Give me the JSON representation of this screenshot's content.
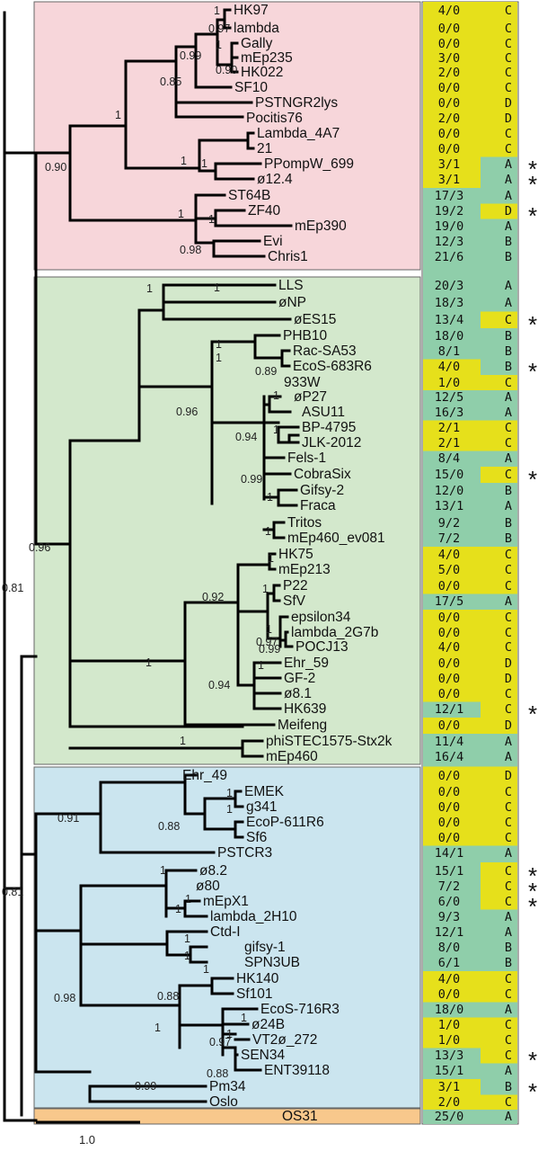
{
  "colors": {
    "pink": "#f7d6da",
    "green": "#d3e8cc",
    "blue": "#cbe5ef",
    "orange": "#f8c88c",
    "yellow": "#e6e01b",
    "teal": "#8fceaa"
  },
  "clades": [
    {
      "name": "pink-clade",
      "color": "#f7d6da"
    },
    {
      "name": "green-clade",
      "color": "#d3e8cc"
    },
    {
      "name": "blue-clade",
      "color": "#cbe5ef"
    },
    {
      "name": "outgroup",
      "color": "#f8c88c"
    }
  ],
  "taxa": [
    {
      "name": "HK97",
      "count": "4/0",
      "cls": "C",
      "star": false
    },
    {
      "name": "lambda",
      "count": "0/0",
      "cls": "C",
      "star": false
    },
    {
      "name": "Gally",
      "count": "0/0",
      "cls": "C",
      "star": false
    },
    {
      "name": "mEp235",
      "count": "3/0",
      "cls": "C",
      "star": false
    },
    {
      "name": "HK022",
      "count": "2/0",
      "cls": "C",
      "star": false
    },
    {
      "name": "SF10",
      "count": "0/0",
      "cls": "C",
      "star": false
    },
    {
      "name": "PSTNGR2lys",
      "count": "0/0",
      "cls": "D",
      "star": false
    },
    {
      "name": "Pocitis76",
      "count": "2/0",
      "cls": "D",
      "star": false
    },
    {
      "name": "Lambda_4A7",
      "count": "0/0",
      "cls": "C",
      "star": false
    },
    {
      "name": "21",
      "count": "0/0",
      "cls": "C",
      "star": false
    },
    {
      "name": "PPompW_699",
      "count": "3/1",
      "cls": "A",
      "star": true
    },
    {
      "name": "ø12.4",
      "count": "3/1",
      "cls": "A",
      "star": true
    },
    {
      "name": "ST64B",
      "count": "17/3",
      "cls": "A",
      "star": false
    },
    {
      "name": "ZF40",
      "count": "19/2",
      "cls": "D",
      "star": true
    },
    {
      "name": "mEp390",
      "count": "19/0",
      "cls": "A",
      "star": false
    },
    {
      "name": "Evi",
      "count": "12/3",
      "cls": "B",
      "star": false
    },
    {
      "name": "Chris1",
      "count": "21/6",
      "cls": "B",
      "star": false
    },
    {
      "name": "LLS",
      "count": "20/3",
      "cls": "A",
      "star": false
    },
    {
      "name": "øNP",
      "count": "18/3",
      "cls": "A",
      "star": false
    },
    {
      "name": "øES15",
      "count": "13/4",
      "cls": "C",
      "star": true
    },
    {
      "name": "PHB10",
      "count": "18/0",
      "cls": "B",
      "star": false
    },
    {
      "name": "Rac-SA53",
      "count": "8/1",
      "cls": "B",
      "star": false
    },
    {
      "name": "EcoS-683R6",
      "count": "4/0",
      "cls": "B",
      "star": true
    },
    {
      "name": "933W",
      "count": "1/0",
      "cls": "C",
      "star": false
    },
    {
      "name": "øP27",
      "count": "12/5",
      "cls": "A",
      "star": false
    },
    {
      "name": "ASU11",
      "count": "16/3",
      "cls": "A",
      "star": false
    },
    {
      "name": "BP-4795",
      "count": "2/1",
      "cls": "C",
      "star": false
    },
    {
      "name": "JLK-2012",
      "count": "2/1",
      "cls": "C",
      "star": false
    },
    {
      "name": "Fels-1",
      "count": "8/4",
      "cls": "A",
      "star": false
    },
    {
      "name": "CobraSix",
      "count": "15/0",
      "cls": "C",
      "star": true
    },
    {
      "name": "Gifsy-2",
      "count": "12/0",
      "cls": "B",
      "star": false
    },
    {
      "name": "Fraca",
      "count": "13/1",
      "cls": "A",
      "star": false
    },
    {
      "name": "Tritos",
      "count": "9/2",
      "cls": "B",
      "star": false
    },
    {
      "name": "mEp460_ev081",
      "count": "7/2",
      "cls": "B",
      "star": false
    },
    {
      "name": "HK75",
      "count": "4/0",
      "cls": "C",
      "star": false
    },
    {
      "name": "mEp213",
      "count": "5/0",
      "cls": "C",
      "star": false
    },
    {
      "name": "P22",
      "count": "0/0",
      "cls": "C",
      "star": false
    },
    {
      "name": "SfV",
      "count": "17/5",
      "cls": "A",
      "star": false
    },
    {
      "name": "epsilon34",
      "count": "0/0",
      "cls": "C",
      "star": false
    },
    {
      "name": "lambda_2G7b",
      "count": "0/0",
      "cls": "C",
      "star": false
    },
    {
      "name": "POCJ13",
      "count": "4/0",
      "cls": "C",
      "star": false
    },
    {
      "name": "Ehr_59",
      "count": "0/0",
      "cls": "D",
      "star": false
    },
    {
      "name": "GF-2",
      "count": "0/0",
      "cls": "D",
      "star": false
    },
    {
      "name": "ø8.1",
      "count": "0/0",
      "cls": "C",
      "star": false
    },
    {
      "name": "HK639",
      "count": "12/1",
      "cls": "C",
      "star": true
    },
    {
      "name": "Meifeng",
      "count": "0/0",
      "cls": "D",
      "star": false
    },
    {
      "name": "phiSTEC1575-Stx2k",
      "count": "11/4",
      "cls": "A",
      "star": false
    },
    {
      "name": "mEp460",
      "count": "16/4",
      "cls": "A",
      "star": false
    },
    {
      "name": "Ehr_49",
      "count": "0/0",
      "cls": "D",
      "star": false
    },
    {
      "name": "EMEK",
      "count": "0/0",
      "cls": "C",
      "star": false
    },
    {
      "name": "g341",
      "count": "0/0",
      "cls": "C",
      "star": false
    },
    {
      "name": "EcoP-611R6",
      "count": "0/0",
      "cls": "C",
      "star": false
    },
    {
      "name": "Sf6",
      "count": "0/0",
      "cls": "C",
      "star": false
    },
    {
      "name": "PSTCR3",
      "count": "14/1",
      "cls": "A",
      "star": false
    },
    {
      "name": "ø8.2",
      "count": "15/1",
      "cls": "C",
      "star": true
    },
    {
      "name": "ø80",
      "count": "7/2",
      "cls": "C",
      "star": true
    },
    {
      "name": "mEpX1",
      "count": "6/0",
      "cls": "C",
      "star": true
    },
    {
      "name": "lambda_2H10",
      "count": "9/3",
      "cls": "A",
      "star": false
    },
    {
      "name": "Ctd-I",
      "count": "12/1",
      "cls": "A",
      "star": false
    },
    {
      "name": "gifsy-1",
      "count": "8/0",
      "cls": "B",
      "star": false
    },
    {
      "name": "SPN3UB",
      "count": "6/1",
      "cls": "B",
      "star": false
    },
    {
      "name": "HK140",
      "count": "4/0",
      "cls": "C",
      "star": false
    },
    {
      "name": "Sf101",
      "count": "0/0",
      "cls": "C",
      "star": false
    },
    {
      "name": "EcoS-716R3",
      "count": "18/0",
      "cls": "A",
      "star": false
    },
    {
      "name": "ø24B",
      "count": "1/0",
      "cls": "C",
      "star": false
    },
    {
      "name": "VT2ø_272",
      "count": "1/0",
      "cls": "C",
      "star": false
    },
    {
      "name": "SEN34",
      "count": "13/3",
      "cls": "C",
      "star": true
    },
    {
      "name": "ENT39118",
      "count": "15/1",
      "cls": "A",
      "star": false
    },
    {
      "name": "Pm34",
      "count": "3/1",
      "cls": "B",
      "star": true
    },
    {
      "name": "Oslo",
      "count": "2/0",
      "cls": "C",
      "star": false
    },
    {
      "name": "OS31",
      "count": "25/0",
      "cls": "A",
      "star": false
    }
  ],
  "support_values": [
    {
      "node": "n-hk97-lambda",
      "label": "0.97"
    },
    {
      "node": "n-gally-mep235",
      "label": "1"
    },
    {
      "node": "n-lambda-group",
      "label": "0.99"
    },
    {
      "node": "n-hk97-top",
      "label": "1"
    },
    {
      "node": "n-mep235-hk022",
      "label": "0.90"
    },
    {
      "node": "n-lambda-sf10",
      "label": "0.85"
    },
    {
      "node": "n-pink-a",
      "label": "1"
    },
    {
      "node": "n-lambda4a7",
      "label": "1"
    },
    {
      "node": "n-ppompw",
      "label": "1"
    },
    {
      "node": "n-pink-root",
      "label": "0.90"
    },
    {
      "node": "n-st64b-group",
      "label": "1"
    },
    {
      "node": "n-zf40",
      "label": "1"
    },
    {
      "node": "n-evi",
      "label": "0.98"
    },
    {
      "node": "n-root",
      "label": "0.81"
    },
    {
      "node": "n-lls-group",
      "label": "1"
    },
    {
      "node": "n-lls",
      "label": "1"
    },
    {
      "node": "n-phb10",
      "label": "1"
    },
    {
      "node": "n-rac",
      "label": "1"
    },
    {
      "node": "n-933w",
      "label": "0.89"
    },
    {
      "node": "n-asu11",
      "label": "1"
    },
    {
      "node": "n-bp4795",
      "label": "1"
    },
    {
      "node": "n-933w-group",
      "label": "0.94"
    },
    {
      "node": "n-green-a",
      "label": "0.96"
    },
    {
      "node": "n-fels",
      "label": "0.99"
    },
    {
      "node": "n-gifsy2",
      "label": "1"
    },
    {
      "node": "n-tritos",
      "label": "1"
    },
    {
      "node": "n-green-root",
      "label": "0.96"
    },
    {
      "node": "n-hk75",
      "label": "1"
    },
    {
      "node": "n-p22",
      "label": "1"
    },
    {
      "node": "n-p22-group",
      "label": "0.92"
    },
    {
      "node": "n-epsilon",
      "label": "0.97"
    },
    {
      "node": "n-lambda2g7b",
      "label": "1"
    },
    {
      "node": "n-pocj13",
      "label": "0.99"
    },
    {
      "node": "n-hk75-group",
      "label": "1"
    },
    {
      "node": "n-ehr59",
      "label": "1"
    },
    {
      "node": "n-ehr59-group",
      "label": "0.94"
    },
    {
      "node": "n-phistec",
      "label": "1"
    },
    {
      "node": "n-root2",
      "label": "0.81"
    },
    {
      "node": "n-ehr49-group",
      "label": "0.91"
    },
    {
      "node": "n-emek",
      "label": "1"
    },
    {
      "node": "n-ecop",
      "label": "1"
    },
    {
      "node": "n-ecop-group",
      "label": "0.88"
    },
    {
      "node": "n-o82",
      "label": "1"
    },
    {
      "node": "n-o80",
      "label": "1"
    },
    {
      "node": "n-lambda2h10",
      "label": "1"
    },
    {
      "node": "n-ctdi",
      "label": "1"
    },
    {
      "node": "n-gifsy1",
      "label": "1"
    },
    {
      "node": "n-blue-a",
      "label": "0.98"
    },
    {
      "node": "n-hk140",
      "label": "1"
    },
    {
      "node": "n-hk140-group",
      "label": "0.88"
    },
    {
      "node": "n-ecos716",
      "label": "1"
    },
    {
      "node": "n-o24b",
      "label": "1"
    },
    {
      "node": "n-vt2",
      "label": "0.97"
    },
    {
      "node": "n-sen34",
      "label": "0.88"
    },
    {
      "node": "n-blue-b",
      "label": "1"
    },
    {
      "node": "n-pm34",
      "label": "0.99"
    }
  ],
  "scale_bar": {
    "label": "1.0"
  }
}
